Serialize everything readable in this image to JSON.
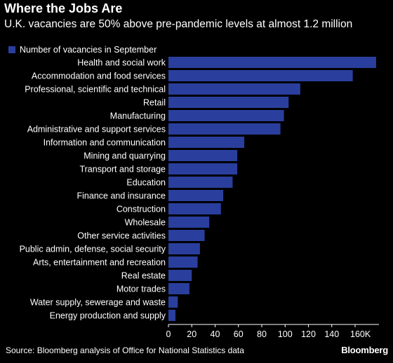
{
  "title": "Where the Jobs Are",
  "subtitle": "U.K. vacancies are 50% above pre-pandemic levels at almost 1.2 million",
  "source": "Source: Bloomberg analysis of Office for National Statistics data",
  "brand": "Bloomberg",
  "colors": {
    "bar": "#2a3f9d",
    "background": "#000000",
    "text": "#ffffff"
  },
  "chart_data": {
    "type": "bar",
    "orientation": "horizontal",
    "legend": [
      "Number of vacancies in September"
    ],
    "legend_position": "top-left",
    "categories": [
      "Health and social work",
      "Accommodation and food services",
      "Professional, scientific and technical",
      "Retail",
      "Manufacturing",
      "Administrative and support services",
      "Information and communication",
      "Mining and quarrying",
      "Transport and storage",
      "Education",
      "Finance and insurance",
      "Construction",
      "Wholesale",
      "Other service activities",
      "Public admin, defense, social security",
      "Arts, entertainment and recreation",
      "Real estate",
      "Motor trades",
      "Water supply, sewerage and waste",
      "Energy production and supply"
    ],
    "series": [
      {
        "name": "Number of vacancies in September",
        "values": [
          178,
          158,
          113,
          103,
          99,
          96,
          65,
          59,
          59,
          55,
          47,
          45,
          35,
          31,
          27,
          25,
          20,
          18,
          8,
          6
        ]
      }
    ],
    "xlim": [
      0,
      180
    ],
    "xticks": [
      "0",
      "20",
      "40",
      "60",
      "80",
      "100",
      "120",
      "140",
      "160K"
    ],
    "xtick_values": [
      0,
      20,
      40,
      60,
      80,
      100,
      120,
      140,
      160
    ],
    "grid": false
  }
}
